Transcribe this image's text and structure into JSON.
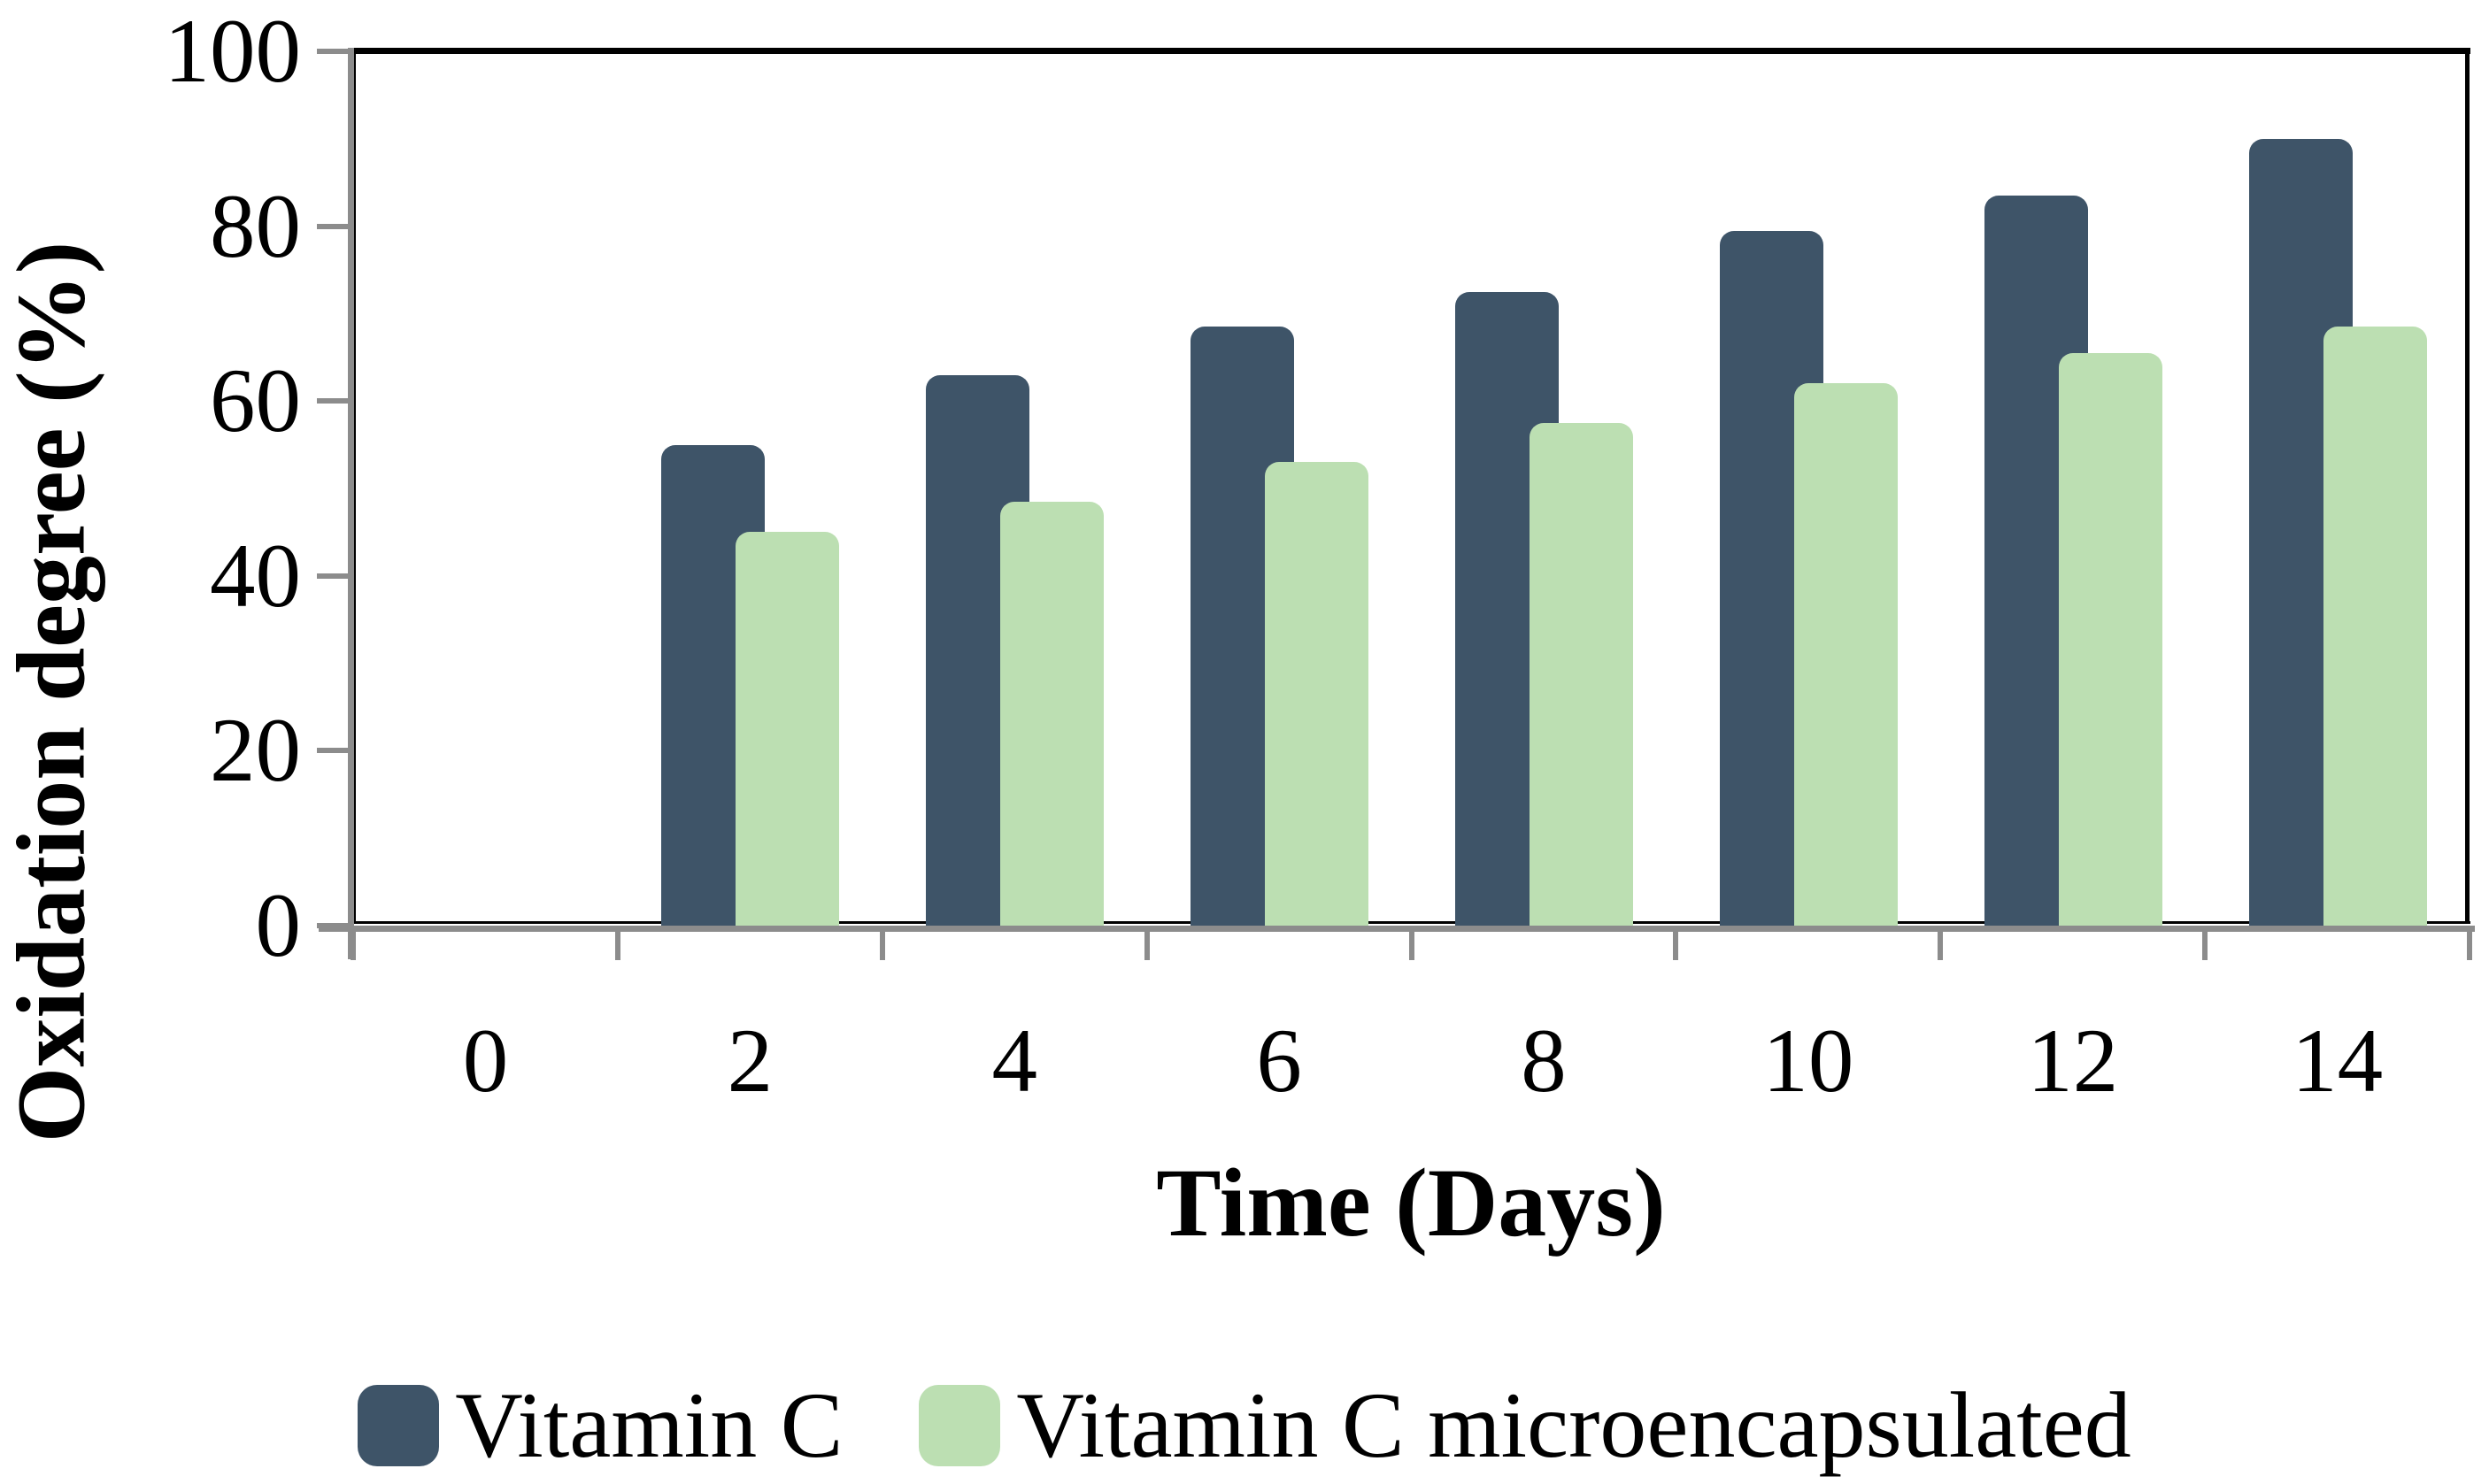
{
  "figure": {
    "background_color": "#ffffff",
    "axis_line_color": "#8c8c8c",
    "plot_border_color": "#000000"
  },
  "chart_data": {
    "type": "bar",
    "title": "",
    "xlabel": "Time (Days)",
    "ylabel": "Oxidation degree (%)",
    "categories": [
      "0",
      "2",
      "4",
      "6",
      "8",
      "10",
      "12",
      "14"
    ],
    "x_values_days": [
      0,
      2,
      4,
      6,
      8,
      10,
      12,
      14
    ],
    "series": [
      {
        "name": "Vitamin C",
        "color": "#3e5468",
        "values": [
          0,
          55,
          63,
          68.5,
          72.5,
          79.5,
          83.5,
          90
        ]
      },
      {
        "name": "Vitamin C microencapsulated",
        "color": "#bcdfb2",
        "values": [
          0,
          45,
          48.5,
          53,
          57.5,
          62,
          65.5,
          68.5
        ]
      }
    ],
    "y_axis": {
      "min": 0,
      "max": 100,
      "step": 20,
      "tick_labels": [
        "0",
        "20",
        "40",
        "60",
        "80",
        "100"
      ]
    },
    "x_axis": {
      "tick_labels": [
        "0",
        "2",
        "4",
        "6",
        "8",
        "10",
        "12",
        "14"
      ]
    },
    "legend": {
      "position": "bottom",
      "entries": [
        "Vitamin C",
        "Vitamin C microencapsulated"
      ]
    },
    "grid": false
  }
}
